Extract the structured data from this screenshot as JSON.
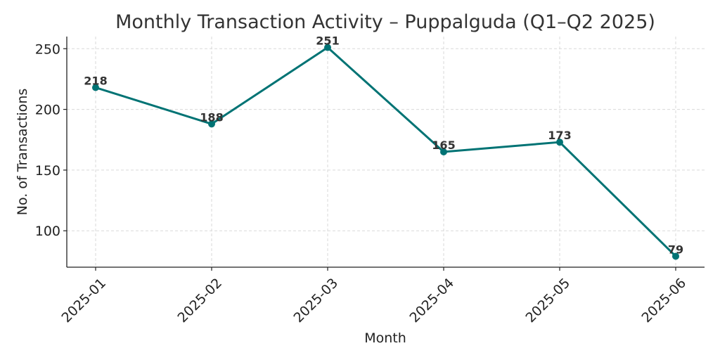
{
  "chart_data": {
    "type": "line",
    "title": "Monthly Transaction Activity – Puppalguda (Q1–Q2 2025)",
    "xlabel": "Month",
    "ylabel": "No. of Transactions",
    "categories": [
      "2025-01",
      "2025-02",
      "2025-03",
      "2025-04",
      "2025-05",
      "2025-06"
    ],
    "series": [
      {
        "values": [
          218,
          188,
          251,
          165,
          173,
          79
        ],
        "color": "#007374"
      }
    ],
    "yticks": [
      100,
      150,
      200,
      250
    ],
    "ylim": [
      70,
      260
    ],
    "grid": true,
    "data_labels": true
  }
}
